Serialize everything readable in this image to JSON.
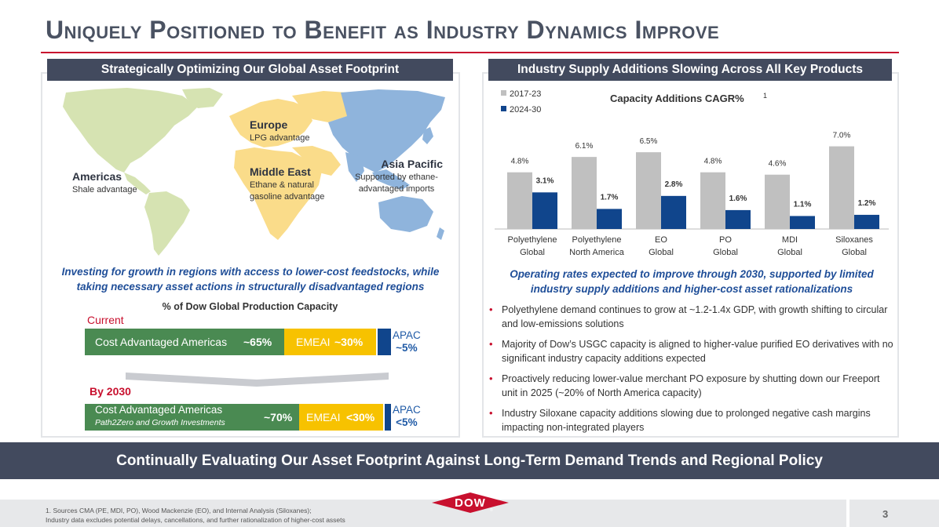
{
  "title": "Uniquely Positioned to Benefit as Industry Dynamics Improve",
  "left_panel": {
    "header": "Strategically Optimizing Our Global Asset Footprint",
    "map": {
      "americas": {
        "region": "Americas",
        "note": "Shale advantage"
      },
      "europe": {
        "region": "Europe",
        "note": "LPG advantage"
      },
      "middle_east": {
        "region": "Middle East",
        "note1": "Ethane & natural",
        "note2": "gasoline advantage"
      },
      "asia_pacific": {
        "region": "Asia Pacific",
        "note1": "Supported by ethane-",
        "note2": "advantaged imports"
      }
    },
    "investing_line1": "Investing for growth in regions with access to lower-cost feedstocks, while",
    "investing_line2": "taking necessary asset actions in structurally disadvantaged regions",
    "capacity_title": "% of Dow Global Production Capacity",
    "current": {
      "label": "Current",
      "americas_label": "Cost Advantaged Americas",
      "americas_pct": "~65%",
      "emeai_label": "EMEAI",
      "emeai_pct": "~30%",
      "apac_label": "APAC",
      "apac_pct": "~5%"
    },
    "by2030": {
      "label": "By 2030",
      "americas_label": "Cost Advantaged Americas",
      "americas_sub": "Path2Zero and Growth Investments",
      "americas_pct": "~70%",
      "emeai_label": "EMEAI",
      "emeai_pct": "<30%",
      "apac_label": "APAC",
      "apac_pct": "<5%"
    }
  },
  "right_panel": {
    "header": "Industry Supply Additions Slowing Across All Key Products",
    "operating_line1": "Operating rates expected to improve through 2030, supported by limited",
    "operating_line2": "industry supply additions and higher-cost asset rationalizations",
    "bullets": [
      "Polyethylene demand continues to grow at ~1.2-1.4x GDP, with growth shifting to circular and low-emissions solutions",
      "Majority of Dow’s USGC capacity is aligned to higher-value purified EO derivatives with no significant industry capacity additions expected",
      "Proactively reducing lower-value merchant PO exposure by shutting down our Freeport unit in 2025 (~20% of North America capacity)",
      "Industry Siloxane capacity additions slowing due to prolonged negative cash margins impacting non-integrated players"
    ]
  },
  "chart_data": {
    "type": "bar",
    "title": "Capacity Additions CAGR%",
    "title_sup": "1",
    "categories": [
      [
        "Polyethylene",
        "Global"
      ],
      [
        "Polyethylene",
        "North America"
      ],
      [
        "EO",
        "Global"
      ],
      [
        "PO",
        "Global"
      ],
      [
        "MDI",
        "Global"
      ],
      [
        "Siloxanes",
        "Global"
      ]
    ],
    "series": [
      {
        "name": "2017-23",
        "color": "#c0c0c0",
        "values": [
          4.8,
          6.1,
          6.5,
          4.8,
          4.6,
          7.0
        ],
        "labels": [
          "4.8%",
          "6.1%",
          "6.5%",
          "4.8%",
          "4.6%",
          "7.0%"
        ]
      },
      {
        "name": "2024-30",
        "color": "#10458c",
        "values": [
          3.1,
          1.7,
          2.8,
          1.6,
          1.1,
          1.2
        ],
        "labels": [
          "3.1%",
          "1.7%",
          "2.8%",
          "1.6%",
          "1.1%",
          "1.2%"
        ]
      }
    ],
    "ylim": [
      0,
      8.5
    ],
    "legend": "top-left"
  },
  "banner": "Continually Evaluating Our Asset Footprint Against Long-Term Demand Trends and Regional Policy",
  "footnote_line1": "1. Sources CMA (PE, MDI, PO), Wood Mackenzie (EO), and Internal Analysis (Siloxanes);",
  "footnote_line2": "Industry data excludes potential delays, cancellations, and further rationalization of higher-cost assets",
  "logo_text": "DOW",
  "page_number": "3",
  "colors": {
    "accent_red": "#c8102e",
    "navy": "#424a5e",
    "dow_blue": "#10458c",
    "green": "#4a8a52",
    "yellow": "#f7c200"
  }
}
